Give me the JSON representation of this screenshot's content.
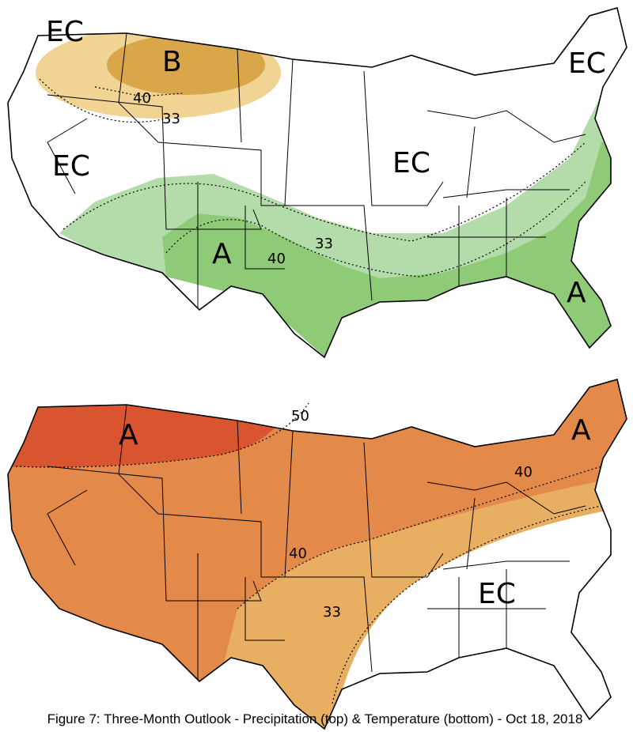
{
  "precipitation_map": {
    "labels": [
      "EC",
      "B",
      "40",
      "33",
      "EC",
      "EC",
      "EC",
      "A",
      "33",
      "40",
      "A"
    ]
  },
  "temperature_map": {
    "labels": [
      "A",
      "50",
      "A",
      "40",
      "40",
      "33",
      "EC"
    ]
  },
  "caption": "Figure 7: Three-Month Outlook - Precipitation (top) & Temperature (bottom) - Oct 18, 2018"
}
